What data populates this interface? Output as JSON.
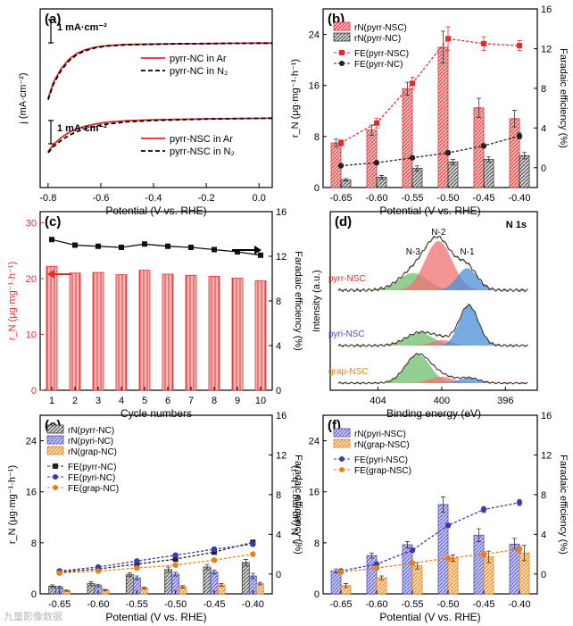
{
  "figure": {
    "watermark": "九量影像数据"
  },
  "chart_data": [
    {
      "id": "a",
      "type": "line",
      "panel_label": "(a)",
      "xlabel": "Potential (V vs. RHE)",
      "ylabel": "j (mA·cm⁻²)",
      "xlim": [
        -0.83,
        0.05
      ],
      "xticks": [
        -0.8,
        -0.6,
        -0.4,
        -0.2,
        0.0
      ],
      "xtick_labels": [
        "-0.8",
        "-0.6",
        "-0.4",
        "-0.2",
        "0.0"
      ],
      "scale_bar_label": "1 mA·cm⁻²",
      "groups": [
        {
          "name": "pyrr-NC",
          "plateau_mA_cm2": 0.0,
          "legend": [
            "pyrr-NC in Ar",
            "pyrr-NC in N₂"
          ],
          "series": [
            {
              "name": "pyrr-NC in Ar",
              "color": "#e32b2b",
              "dash": "solid",
              "x": [
                -0.8,
                -0.78,
                -0.75,
                -0.72,
                -0.69,
                -0.66,
                -0.62,
                -0.58,
                -0.5,
                -0.4,
                -0.3,
                -0.2,
                -0.1,
                0.0,
                0.05
              ],
              "y": [
                -2.4,
                -1.7,
                -1.1,
                -0.7,
                -0.45,
                -0.3,
                -0.18,
                -0.12,
                -0.07,
                -0.05,
                -0.04,
                -0.03,
                -0.02,
                -0.01,
                -0.01
              ]
            },
            {
              "name": "pyrr-NC in N₂",
              "color": "#000000",
              "dash": "dashed",
              "x": [
                -0.8,
                -0.78,
                -0.75,
                -0.72,
                -0.69,
                -0.66,
                -0.62,
                -0.58,
                -0.5,
                -0.4,
                -0.3,
                -0.2,
                -0.1,
                0.0,
                0.05
              ],
              "y": [
                -2.45,
                -1.78,
                -1.18,
                -0.76,
                -0.5,
                -0.34,
                -0.21,
                -0.14,
                -0.08,
                -0.06,
                -0.04,
                -0.03,
                -0.02,
                -0.01,
                -0.01
              ]
            }
          ]
        },
        {
          "name": "pyrr-NSC",
          "plateau_mA_cm2": -3.5,
          "legend": [
            "pyrr-NSC in Ar",
            "pyrr-NSC in N₂"
          ],
          "series": [
            {
              "name": "pyrr-NSC in Ar",
              "color": "#e32b2b",
              "dash": "solid",
              "x": [
                -0.8,
                -0.78,
                -0.75,
                -0.72,
                -0.69,
                -0.66,
                -0.62,
                -0.58,
                -0.5,
                -0.4,
                -0.3,
                -0.2,
                -0.1,
                0.0,
                0.05
              ],
              "y": [
                -1.45,
                -1.15,
                -0.85,
                -0.62,
                -0.47,
                -0.36,
                -0.26,
                -0.19,
                -0.12,
                -0.08,
                -0.06,
                -0.04,
                -0.03,
                -0.02,
                -0.01
              ]
            },
            {
              "name": "pyrr-NSC in N₂",
              "color": "#000000",
              "dash": "dashed",
              "x": [
                -0.8,
                -0.78,
                -0.75,
                -0.72,
                -0.69,
                -0.66,
                -0.62,
                -0.58,
                -0.5,
                -0.4,
                -0.3,
                -0.2,
                -0.1,
                0.0,
                0.05
              ],
              "y": [
                -1.5,
                -1.24,
                -0.97,
                -0.75,
                -0.59,
                -0.47,
                -0.35,
                -0.27,
                -0.17,
                -0.11,
                -0.08,
                -0.05,
                -0.03,
                -0.02,
                -0.01
              ]
            }
          ]
        }
      ]
    },
    {
      "id": "b",
      "type": "bar",
      "panel_label": "(b)",
      "xlabel": "Potential (V vs. RHE)",
      "ylabel": "r_N (μg·mg⁻¹·h⁻¹)",
      "y2label": "Faradaic efficiency (%)",
      "categories": [
        "-0.65",
        "-0.60",
        "-0.55",
        "-0.50",
        "-0.45",
        "-0.40"
      ],
      "ylim": [
        0,
        28
      ],
      "yticks": [
        0,
        8,
        16,
        24
      ],
      "y2lim": [
        -2,
        16
      ],
      "y2ticks": [
        0,
        4,
        8,
        12,
        16
      ],
      "bars": [
        {
          "name": "rN(pyrr-NSC)",
          "fill": "#f2b8b8",
          "hatch": "#e32b2b",
          "values": [
            7.0,
            9.0,
            15.5,
            22.0,
            12.5,
            10.8
          ],
          "errors": [
            0.6,
            0.8,
            1.0,
            2.5,
            1.5,
            1.3
          ]
        },
        {
          "name": "rN(pyrr-NC)",
          "fill": "#d6d6d6",
          "hatch": "#333333",
          "values": [
            1.2,
            1.6,
            3.0,
            4.0,
            4.4,
            5.0
          ],
          "errors": [
            0.2,
            0.3,
            0.4,
            0.4,
            0.4,
            0.5
          ]
        }
      ],
      "fe": [
        {
          "name": "FE(pyrr-NSC)",
          "color": "#e32b2b",
          "marker": "square",
          "values": [
            2.5,
            4.5,
            8.5,
            13.0,
            12.5,
            12.3
          ],
          "errors": [
            0.3,
            0.5,
            0.6,
            1.2,
            0.7,
            0.5
          ]
        },
        {
          "name": "FE(pyrr-NC)",
          "color": "#222222",
          "marker": "circle",
          "values": [
            0.2,
            0.5,
            1.0,
            1.5,
            2.2,
            3.2
          ],
          "errors": [
            0.1,
            0.1,
            0.15,
            0.2,
            0.2,
            0.3
          ]
        }
      ]
    },
    {
      "id": "c",
      "type": "bar",
      "panel_label": "(c)",
      "xlabel": "Cycle numbers",
      "ylabel": "r_N (μg·mg⁻¹·h⁻¹)",
      "y2label": "Faradaic efficiency (%)",
      "categories": [
        "1",
        "2",
        "3",
        "4",
        "5",
        "6",
        "7",
        "8",
        "9",
        "10"
      ],
      "ylim": [
        0,
        32
      ],
      "yticks": [
        0,
        10,
        20,
        30
      ],
      "y2lim": [
        0,
        16
      ],
      "y2ticks": [
        0,
        4,
        8,
        12,
        16
      ],
      "bars": [
        {
          "name": "rN",
          "fill": "#f2b8b8",
          "hatch": "#e32b2b",
          "values": [
            22.2,
            21.0,
            21.1,
            20.7,
            21.5,
            20.8,
            20.6,
            20.4,
            20.1,
            19.6
          ]
        }
      ],
      "fe": [
        {
          "name": "FE",
          "color": "#111111",
          "marker": "square",
          "values": [
            13.5,
            13.0,
            12.9,
            12.8,
            13.1,
            12.9,
            12.8,
            12.6,
            12.4,
            12.1
          ]
        }
      ]
    },
    {
      "id": "d",
      "type": "line",
      "panel_label": "(d)",
      "title": "N 1s",
      "xlabel": "Binding energy (eV)",
      "ylabel": "Intensity (a.u.)",
      "xlim": [
        407,
        394
      ],
      "xticks": [
        404,
        400,
        396
      ],
      "xtick_labels": [
        "404",
        "400",
        "396"
      ],
      "peak_labels": [
        "N-3",
        "N-2",
        "N-1"
      ],
      "spectra": [
        {
          "name": "pyrr-NSC",
          "color": "#e32b2b",
          "peaks": [
            {
              "label": "N-3",
              "center": 401.8,
              "height": 0.35,
              "width": 1.3,
              "color": "#6fbf6f"
            },
            {
              "label": "N-2",
              "center": 400.2,
              "height": 1.0,
              "width": 1.2,
              "color": "#f07070"
            },
            {
              "label": "N-1",
              "center": 398.4,
              "height": 0.45,
              "width": 0.9,
              "color": "#4a90d9"
            }
          ]
        },
        {
          "name": "pyri-NSC",
          "color": "#4a4ad0",
          "peaks": [
            {
              "label": "N-3",
              "center": 401.4,
              "height": 0.32,
              "width": 1.2,
              "color": "#6fbf6f"
            },
            {
              "label": "N-2",
              "center": 400.0,
              "height": 0.14,
              "width": 0.9,
              "color": "#f07070"
            },
            {
              "label": "N-1",
              "center": 398.3,
              "height": 1.0,
              "width": 0.85,
              "color": "#4a90d9"
            }
          ]
        },
        {
          "name": "grap-NSC",
          "color": "#e8801a",
          "peaks": [
            {
              "label": "N-3",
              "center": 401.5,
              "height": 1.0,
              "width": 1.1,
              "color": "#6fbf6f"
            },
            {
              "label": "N-2",
              "center": 400.0,
              "height": 0.22,
              "width": 1.0,
              "color": "#f07070"
            },
            {
              "label": "N-1",
              "center": 398.3,
              "height": 0.18,
              "width": 0.9,
              "color": "#4a90d9"
            }
          ]
        }
      ]
    },
    {
      "id": "e",
      "type": "bar",
      "panel_label": "(e)",
      "xlabel": "Potential (V vs. RHE)",
      "ylabel": "r_N (μg·mg⁻¹·h⁻¹)",
      "y2label": "Faradaic efficiency (%)",
      "categories": [
        "-0.65",
        "-0.60",
        "-0.55",
        "-0.50",
        "-0.45",
        "-0.40"
      ],
      "ylim": [
        0,
        28
      ],
      "yticks": [
        0,
        8,
        16,
        24
      ],
      "y2lim": [
        -2,
        16
      ],
      "y2ticks": [
        0,
        4,
        8,
        12,
        16
      ],
      "bars": [
        {
          "name": "rN(pyrr-NC)",
          "fill": "#d6d6d6",
          "hatch": "#333333",
          "values": [
            1.2,
            1.6,
            3.0,
            3.8,
            4.2,
            4.9
          ],
          "errors": [
            0.2,
            0.3,
            0.3,
            0.4,
            0.4,
            0.5
          ]
        },
        {
          "name": "rN(pyri-NC)",
          "fill": "#c8c8ee",
          "hatch": "#4a4ad0",
          "values": [
            1.0,
            1.3,
            2.5,
            3.1,
            3.4,
            2.8
          ],
          "errors": [
            0.2,
            0.2,
            0.3,
            0.3,
            0.3,
            0.4
          ]
        },
        {
          "name": "rN(grap-NC)",
          "fill": "#fcd9b0",
          "hatch": "#e8801a",
          "values": [
            0.5,
            0.6,
            0.9,
            1.1,
            1.4,
            1.6
          ],
          "errors": [
            0.1,
            0.1,
            0.15,
            0.2,
            0.2,
            0.2
          ]
        }
      ],
      "fe": [
        {
          "name": "FE(pyrr-NC)",
          "color": "#222222",
          "marker": "square",
          "values": [
            0.2,
            0.5,
            1.0,
            1.5,
            2.2,
            3.2
          ]
        },
        {
          "name": "FE(pyri-NC)",
          "color": "#3a3ab0",
          "marker": "circle",
          "values": [
            0.3,
            0.7,
            1.3,
            1.9,
            2.5,
            3.0
          ]
        },
        {
          "name": "FE(grap-NC)",
          "color": "#e8801a",
          "marker": "circle",
          "values": [
            0.1,
            0.3,
            0.6,
            0.9,
            1.4,
            2.0
          ]
        }
      ]
    },
    {
      "id": "f",
      "type": "bar",
      "panel_label": "(f)",
      "xlabel": "Potential (V vs. RHE)",
      "ylabel": "r_N (μg·mg⁻¹·h⁻¹)",
      "y2label": "Faradaic efficiency (%)",
      "categories": [
        "-0.65",
        "-0.60",
        "-0.55",
        "-0.50",
        "-0.45",
        "-0.40"
      ],
      "ylim": [
        0,
        28
      ],
      "yticks": [
        0,
        8,
        16,
        24
      ],
      "y2lim": [
        -2,
        16
      ],
      "y2ticks": [
        0,
        4,
        8,
        12,
        16
      ],
      "bars": [
        {
          "name": "rN(pyri-NSC)",
          "fill": "#c8c8ee",
          "hatch": "#4a4ad0",
          "values": [
            3.6,
            6.0,
            7.7,
            14.0,
            9.2,
            7.8
          ],
          "errors": [
            0.3,
            0.4,
            0.5,
            1.2,
            1.0,
            0.9
          ]
        },
        {
          "name": "rN(grap-NSC)",
          "fill": "#fcd9b0",
          "hatch": "#e8801a",
          "values": [
            1.3,
            2.5,
            4.4,
            5.6,
            5.8,
            6.4
          ],
          "errors": [
            0.3,
            0.3,
            0.5,
            0.5,
            0.9,
            1.2
          ]
        }
      ],
      "fe": [
        {
          "name": "FE(pyri-NSC)",
          "color": "#3a3ab0",
          "marker": "circle",
          "values": [
            0.3,
            1.0,
            2.4,
            4.9,
            6.5,
            7.2
          ],
          "errors": [
            0.1,
            0.1,
            0.2,
            0.2,
            0.3,
            0.3
          ]
        },
        {
          "name": "FE(grap-NSC)",
          "color": "#e8801a",
          "marker": "circle",
          "values": [
            0.2,
            0.6,
            1.1,
            1.6,
            2.0,
            2.5
          ],
          "errors": [
            0.1,
            0.1,
            0.2,
            0.2,
            0.3,
            0.3
          ]
        }
      ]
    }
  ]
}
